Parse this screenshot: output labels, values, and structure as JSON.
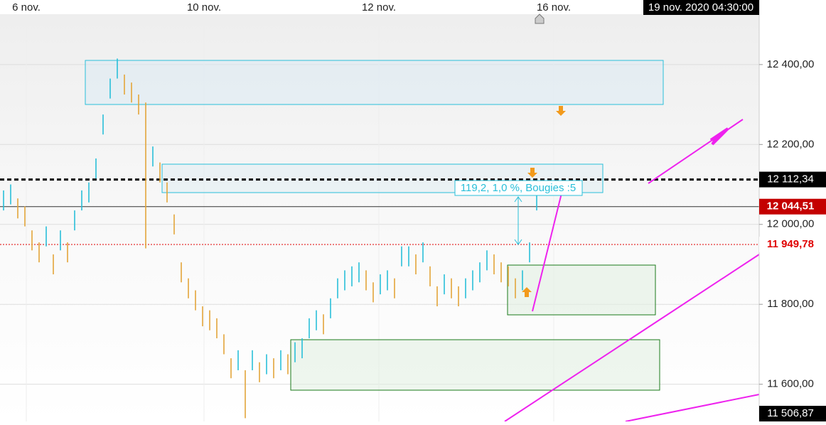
{
  "chart_data": {
    "type": "ohlc",
    "timestamp": "19 nov. 2020 04:30:00",
    "measure_label": "119,2, 1,0 %, Bougies :5",
    "up_color": "#29bfd9",
    "down_color": "#e3a53a",
    "x": [
      0,
      1,
      2,
      3,
      4,
      5,
      6,
      7,
      8,
      9,
      10,
      11,
      12,
      13,
      14,
      15,
      16,
      17,
      18,
      19,
      20,
      21,
      22,
      23,
      24,
      25,
      26,
      27,
      28,
      29,
      30,
      31,
      32,
      33,
      34,
      35,
      36,
      37,
      38,
      39,
      40,
      41,
      42,
      43,
      44,
      45,
      46,
      47,
      48,
      49,
      50,
      51,
      52,
      53,
      54,
      55,
      56,
      57,
      58,
      59,
      60,
      61,
      62,
      63,
      64,
      65,
      66,
      67,
      68,
      69,
      70,
      71,
      72,
      73,
      74,
      75
    ],
    "highs": [
      12085,
      12100,
      12065,
      12045,
      11985,
      11955,
      11995,
      11925,
      11985,
      11955,
      12035,
      12085,
      12105,
      12165,
      12275,
      12365,
      12415,
      12375,
      12355,
      12325,
      12305,
      12195,
      12155,
      12105,
      12025,
      11905,
      11865,
      11835,
      11795,
      11785,
      11765,
      11725,
      11665,
      11685,
      11635,
      11685,
      11655,
      11675,
      11665,
      11685,
      11675,
      11705,
      11715,
      11765,
      11785,
      11775,
      11815,
      11865,
      11885,
      11895,
      11905,
      11885,
      11855,
      11875,
      11885,
      11865,
      11945,
      11945,
      11925,
      11955,
      11895,
      11845,
      11875,
      11865,
      11845,
      11865,
      11885,
      11905,
      11935,
      11925,
      11905,
      11895,
      11865,
      11885,
      11955,
      12085
    ],
    "lows": [
      12035,
      12050,
      12015,
      11995,
      11935,
      11905,
      11945,
      11875,
      11935,
      11905,
      11985,
      12035,
      12055,
      12115,
      12225,
      12315,
      12365,
      12325,
      12305,
      12275,
      11940,
      12145,
      12105,
      12055,
      11975,
      11855,
      11815,
      11785,
      11745,
      11735,
      11715,
      11675,
      11615,
      11635,
      11515,
      11635,
      11605,
      11625,
      11615,
      11635,
      11625,
      11655,
      11665,
      11715,
      11735,
      11725,
      11765,
      11815,
      11835,
      11845,
      11855,
      11835,
      11805,
      11825,
      11835,
      11815,
      11895,
      11895,
      11875,
      11905,
      11845,
      11795,
      11825,
      11815,
      11795,
      11815,
      11835,
      11855,
      11885,
      11875,
      11855,
      11845,
      11815,
      11835,
      11905,
      12035
    ],
    "xlim": [
      -0.5,
      106.3
    ],
    "xticks": [
      {
        "value": 3.2,
        "label": "6 nov."
      },
      {
        "value": 28.2,
        "label": "10 nov."
      },
      {
        "value": 52.8,
        "label": "12 nov."
      },
      {
        "value": 77.4,
        "label": "16 nov."
      }
    ],
    "ylim": [
      11506.87,
      12526
    ],
    "yticks": [
      {
        "value": 11600,
        "label": "11 600,00"
      },
      {
        "value": 11800,
        "label": "11 800,00"
      },
      {
        "value": 12000,
        "label": "12 000,00"
      },
      {
        "value": 12200,
        "label": "12 200,00"
      },
      {
        "value": 12400,
        "label": "12 400,00"
      }
    ],
    "levels": [
      {
        "value": 12112.34,
        "label": "12 112,34",
        "style": "dotted-black"
      },
      {
        "value": 12044.51,
        "label": "12 044,51",
        "style": "solid-red-box"
      },
      {
        "value": 11949.78,
        "label": "11 949,78",
        "style": "dotted-red"
      },
      {
        "value": 11506.87,
        "label": "11 506,87",
        "style": "edge"
      }
    ],
    "grid": true
  }
}
